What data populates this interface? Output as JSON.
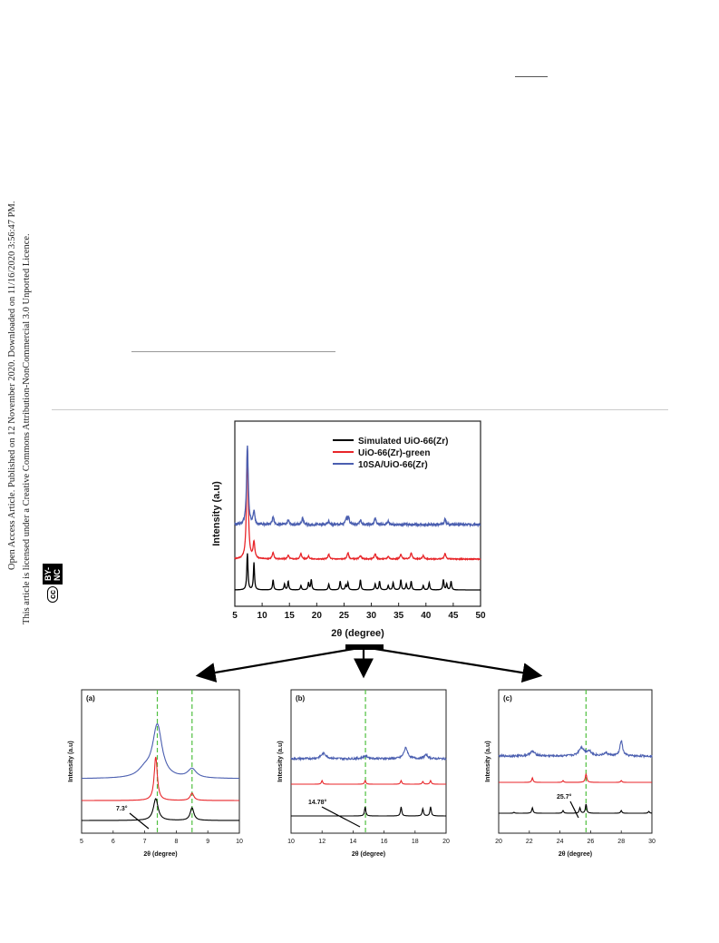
{
  "sidebar": {
    "line1": "Open Access Article. Published on 12 November 2020. Downloaded on 11/16/2020 3:56:47 PM.",
    "line2": "This article is licensed under a Creative Commons Attribution-NonCommercial 3.0 Unported Licence.",
    "badge_cc": "cc",
    "badge_by": "BY-NC"
  },
  "chart_data": [
    {
      "type": "line",
      "title": "",
      "xlabel": "2θ (degree)",
      "ylabel": "Intensity (a.u)",
      "xlim": [
        5,
        50
      ],
      "xticks": [
        5,
        10,
        15,
        20,
        25,
        30,
        35,
        40,
        45,
        50
      ],
      "legend_position": "top-right",
      "series": [
        {
          "name": "Simulated UiO-66(Zr)",
          "color": "#000000",
          "peaks": [
            7.3,
            8.5,
            12.0,
            14.1,
            14.78,
            17.1,
            18.5,
            19.0,
            22.2,
            24.3,
            25.3,
            25.7,
            28.0,
            30.7,
            31.5,
            33.1,
            34.0,
            35.4,
            36.4,
            37.3,
            39.5,
            40.6,
            43.2,
            43.8,
            44.6
          ]
        },
        {
          "name": "UiO-66(Zr)-green",
          "color": "#e8262a",
          "peaks": [
            7.3,
            8.5,
            12.0,
            14.78,
            17.1,
            18.5,
            22.2,
            25.7,
            28.0,
            30.7,
            33.1,
            35.4,
            37.3,
            39.5,
            43.5
          ]
        },
        {
          "name": "10SA/UiO-66(Zr)",
          "color": "#4b5fb0",
          "peaks": [
            7.3,
            8.5,
            12.0,
            14.8,
            17.4,
            22.2,
            25.4,
            25.8,
            28.0,
            30.7,
            33.1,
            43.5
          ]
        }
      ]
    },
    {
      "type": "line",
      "panel": "(a)",
      "xlabel": "2θ (degree)",
      "ylabel": "Intensity (a.u)",
      "xlim": [
        5,
        10
      ],
      "xticks": [
        5,
        6,
        7,
        8,
        9,
        10
      ],
      "dashed_lines": [
        7.4,
        8.5
      ],
      "annotation": "7.3°"
    },
    {
      "type": "line",
      "panel": "(b)",
      "xlabel": "2θ (degree)",
      "ylabel": "Intensity (a.u)",
      "xlim": [
        10,
        20
      ],
      "xticks": [
        10,
        12,
        14,
        16,
        18,
        20
      ],
      "dashed_lines": [
        14.8
      ],
      "annotation": "14.78°"
    },
    {
      "type": "line",
      "panel": "(c)",
      "xlabel": "2θ (degree)",
      "ylabel": "Intensity (a.u)",
      "xlim": [
        20,
        30
      ],
      "xticks": [
        20,
        22,
        24,
        26,
        28,
        30
      ],
      "dashed_lines": [
        25.7
      ],
      "annotation": "25.7°"
    }
  ]
}
